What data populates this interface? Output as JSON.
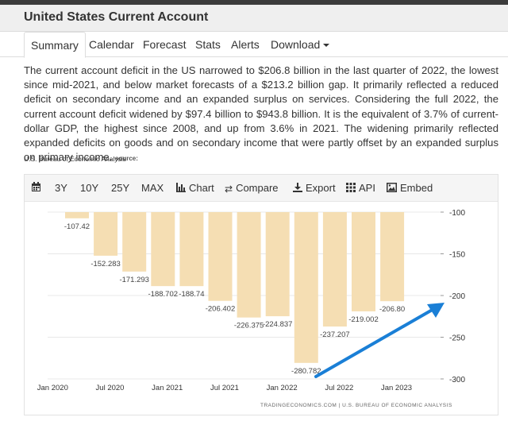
{
  "page": {
    "title": "United States Current Account"
  },
  "tabs": [
    {
      "label": "Summary",
      "active": true
    },
    {
      "label": "Calendar"
    },
    {
      "label": "Forecast"
    },
    {
      "label": "Stats"
    },
    {
      "label": "Alerts"
    },
    {
      "label": "Download"
    }
  ],
  "summary": {
    "text": "The current account deficit in the US narrowed to $206.8 billion in the last quarter of 2022, the lowest since mid-2021, and below market forecasts of a $213.2 billion gap. It primarily reflected a reduced deficit on secondary income and an expanded surplus on services. Considering the full 2022, the current account deficit widened by $97.4 billion to $943.8 billion. It is the equivalent of 3.7% of current-dollar GDP, the highest since 2008, and up from 3.6% in 2021. The widening primarily reflected expanded deficits on goods and on secondary income that were partly offset by an expanded surplus on primary income.",
    "source_label": "source:",
    "source": "U.S. Bureau of Economic Analysis"
  },
  "toolbar": {
    "calendar_icon": "calendar-icon",
    "ranges": [
      "3Y",
      "10Y",
      "25Y",
      "MAX"
    ],
    "chart": "Chart",
    "compare": "Compare",
    "export": "Export",
    "api": "API",
    "embed": "Embed"
  },
  "colors": {
    "bar": "#f5deb3",
    "arrow": "#1a7fd6",
    "grid": "#e8e8e8"
  },
  "chart_data": {
    "type": "bar",
    "categories": [
      "2020 Q1",
      "2020 Q2",
      "2020 Q3",
      "2020 Q4",
      "2021 Q1",
      "2021 Q2",
      "2021 Q3",
      "2021 Q4",
      "2022 Q1",
      "2022 Q2",
      "2022 Q3",
      "2022 Q4"
    ],
    "values": [
      -107.42,
      -152.283,
      -171.293,
      -188.702,
      -188.74,
      -206.402,
      -226.375,
      -224.837,
      -280.782,
      -237.207,
      -219.002,
      -206.8
    ],
    "value_labels": [
      "-107.42",
      "-152.283",
      "-171.293",
      "-188.702",
      "-188.74",
      "-206.402",
      "-226.375",
      "-224.837",
      "-280.782",
      "-237.207",
      "-219.002",
      "-206.80"
    ],
    "x_tick_labels": [
      "Jan 2020",
      "Jul 2020",
      "Jan 2021",
      "Jul 2021",
      "Jan 2022",
      "Jul 2022",
      "Jan 2023"
    ],
    "y_ticks": [
      -100,
      -150,
      -200,
      -250,
      -300
    ],
    "ylim": [
      -300,
      -100
    ],
    "title": "",
    "xlabel": "",
    "ylabel": "",
    "grid": true,
    "axis_position": "right",
    "attribution": "TRADINGECONOMICS.COM | U.S. BUREAU OF ECONOMIC ANALYSIS"
  }
}
